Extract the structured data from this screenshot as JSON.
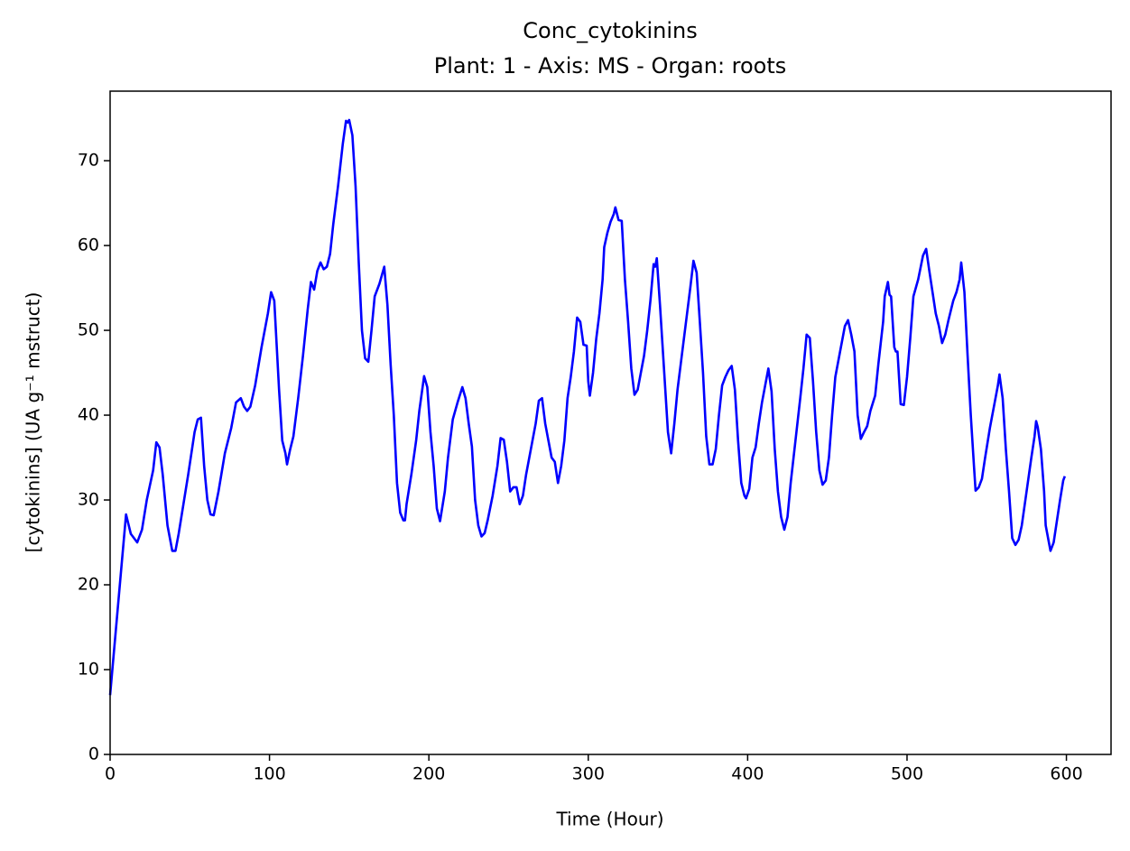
{
  "chart_data": {
    "type": "line",
    "title": "Conc_cytokinins",
    "subtitle": "Plant: 1 - Axis: MS - Organ: roots",
    "xlabel": "Time (Hour)",
    "ylabel": "[cytokinins] (UA g⁻¹ mstruct)",
    "color": "#0000ff",
    "xlim": [
      0,
      628
    ],
    "ylim": [
      0,
      78.2
    ],
    "xticks": [
      0,
      100,
      200,
      300,
      400,
      500,
      600
    ],
    "yticks": [
      0,
      10,
      20,
      30,
      40,
      50,
      60,
      70
    ],
    "x": [
      0,
      10,
      13,
      17,
      20,
      23,
      27,
      29,
      31,
      33,
      36,
      39,
      41,
      43,
      49,
      53,
      55,
      57,
      59,
      61,
      63,
      65,
      68,
      72,
      76,
      79,
      82,
      84,
      86,
      88,
      91,
      95,
      99,
      101,
      103,
      106,
      108,
      110,
      111,
      113,
      115,
      118,
      121,
      124,
      126,
      128,
      130,
      132,
      134,
      136,
      138,
      140,
      143,
      146,
      148,
      149,
      150,
      152,
      154,
      156,
      158,
      160,
      162,
      164,
      166,
      169,
      172,
      174,
      176,
      178,
      180,
      182,
      184,
      185,
      186,
      189,
      192,
      194,
      197,
      199,
      201,
      203,
      205,
      207,
      210,
      212,
      215,
      218,
      220,
      221,
      223,
      225,
      227,
      229,
      231,
      233,
      235,
      237,
      240,
      243,
      245,
      247,
      249,
      251,
      253,
      255,
      257,
      259,
      261,
      264,
      267,
      269,
      271,
      273,
      275,
      277,
      279,
      281,
      283,
      285,
      287,
      289,
      291,
      293,
      295,
      297,
      299,
      300,
      301,
      303,
      305,
      307,
      309,
      310,
      312,
      314,
      316,
      317,
      319,
      321,
      323,
      325,
      327,
      329,
      331,
      333,
      335,
      337,
      339,
      341,
      342,
      343,
      345,
      347,
      349,
      350,
      352,
      354,
      356,
      358,
      360,
      362,
      364,
      366,
      368,
      370,
      372,
      374,
      376,
      378,
      380,
      382,
      384,
      386,
      388,
      390,
      392,
      394,
      396,
      398,
      399,
      401,
      403,
      405,
      407,
      409,
      411,
      413,
      415,
      417,
      419,
      421,
      423,
      425,
      427,
      430,
      433,
      435,
      437,
      439,
      441,
      443,
      445,
      447,
      449,
      451,
      453,
      455,
      458,
      461,
      463,
      465,
      467,
      469,
      471,
      473,
      475,
      477,
      480,
      482,
      485,
      486,
      488,
      489,
      490,
      492,
      493,
      494,
      496,
      498,
      500,
      502,
      504,
      507,
      510,
      512,
      514,
      516,
      518,
      520,
      522,
      524,
      526,
      529,
      531,
      533,
      534,
      536,
      538,
      540,
      542,
      543,
      545,
      547,
      549,
      552,
      555,
      557,
      558,
      560,
      562,
      564,
      566,
      568,
      570,
      572,
      575,
      578,
      580,
      581,
      582,
      584,
      586,
      587,
      589,
      590,
      592,
      594,
      596,
      598,
      599
    ],
    "values": [
      7,
      28.3,
      26,
      25,
      26.5,
      30,
      33.5,
      36.8,
      36.2,
      33,
      27,
      24,
      24,
      26,
      33,
      38,
      39.5,
      39.7,
      34,
      30,
      28.3,
      28.2,
      31,
      35.5,
      38.5,
      41.5,
      42,
      41,
      40.5,
      41,
      43.5,
      48,
      52,
      54.5,
      53.5,
      43,
      37,
      35.5,
      34.2,
      36,
      37.5,
      42,
      47,
      52.5,
      55.7,
      54.8,
      57,
      58,
      57.2,
      57.5,
      59,
      62.5,
      67,
      72,
      74.7,
      74.5,
      74.8,
      73,
      67,
      58,
      50,
      46.7,
      46.3,
      50,
      54,
      55.5,
      57.5,
      53,
      46,
      40,
      32,
      28.5,
      27.6,
      27.6,
      29.5,
      33,
      37,
      40.5,
      44.6,
      43.3,
      38,
      34,
      29,
      27.5,
      31,
      35,
      39.5,
      41.5,
      42.7,
      43.3,
      42,
      39,
      36.3,
      30,
      27,
      25.7,
      26.1,
      27.7,
      30.5,
      34,
      37.3,
      37.1,
      34.5,
      31,
      31.5,
      31.5,
      29.5,
      30.5,
      33,
      36,
      39,
      41.7,
      42,
      39,
      37,
      35,
      34.5,
      32,
      34,
      37,
      42,
      44.5,
      47.5,
      51.5,
      51,
      48.3,
      48.2,
      44,
      42.3,
      45,
      49,
      52,
      56,
      59.8,
      61.5,
      62.8,
      63.7,
      64.5,
      63,
      62.9,
      56,
      51,
      45.5,
      42.4,
      43,
      45,
      47,
      50,
      53.5,
      57.8,
      57.5,
      58.5,
      53,
      47,
      41,
      38,
      35.5,
      39,
      43,
      46,
      49,
      52,
      55,
      58.2,
      56.8,
      51,
      45,
      37.5,
      34.2,
      34.2,
      36,
      40,
      43.5,
      44.5,
      45.3,
      45.8,
      43,
      37,
      32,
      30.5,
      30.2,
      31.3,
      35,
      36.2,
      39,
      41.5,
      43.5,
      45.5,
      42.8,
      36,
      31,
      28,
      26.5,
      28,
      32,
      37,
      42,
      45.5,
      49.5,
      49.1,
      44,
      38,
      33.5,
      31.8,
      32.3,
      35,
      40,
      44.5,
      47.5,
      50.5,
      51.2,
      49.5,
      47.5,
      40,
      37.2,
      38,
      38.7,
      40.5,
      42.3,
      46,
      51,
      54,
      55.7,
      54.2,
      54,
      48,
      47.5,
      47.5,
      41.3,
      41.2,
      44.5,
      49,
      54,
      56,
      58.8,
      59.6,
      57,
      54.5,
      52,
      50.5,
      48.5,
      49.5,
      51.2,
      53.5,
      54.5,
      56,
      58,
      54.5,
      47,
      40,
      34,
      31.1,
      31.5,
      32.5,
      35,
      38.5,
      41.5,
      43.5,
      44.8,
      42,
      36,
      31,
      25.5,
      24.7,
      25.3,
      27,
      31,
      35,
      37.5,
      39.3,
      38.6,
      36,
      31,
      27,
      25,
      24,
      25,
      27.5,
      30,
      32.3,
      32.8
    ]
  }
}
